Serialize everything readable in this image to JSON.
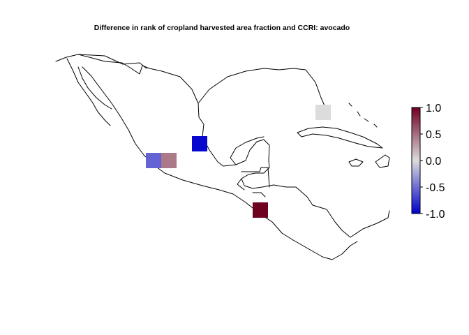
{
  "title": "Difference in rank of cropland harvested area fraction and CCRI: avocado",
  "colorbar": {
    "min": -1.0,
    "max": 1.0,
    "tick_labels": [
      "1.0",
      "0.5",
      "0.0",
      "-0.5",
      "-1.0"
    ],
    "tick_values": [
      1.0,
      0.5,
      0.0,
      -0.5,
      -1.0
    ],
    "colors": {
      "low": "#0000CD",
      "mid": "#DCDCDC",
      "high": "#6E0020"
    }
  },
  "cells": [
    {
      "region": "florida",
      "value": 0.0
    },
    {
      "region": "northeast-mexico",
      "value": -0.97
    },
    {
      "region": "west-mexico-a",
      "value": -0.55
    },
    {
      "region": "west-mexico-b",
      "value": 0.45
    },
    {
      "region": "guatemala-el-salvador",
      "value": 1.0
    }
  ]
}
